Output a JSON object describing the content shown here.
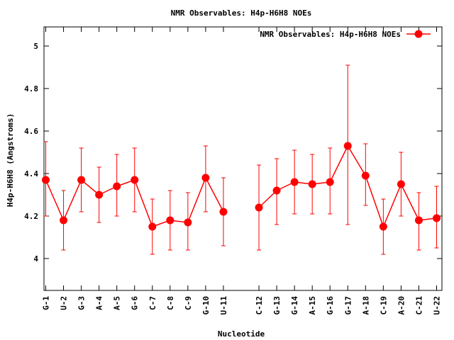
{
  "chart_data": {
    "type": "line",
    "title": "NMR Observables: H4p-H6H8 NOEs",
    "xlabel": "Nucleotide",
    "ylabel": "H4p-H6H8 (Angstroms)",
    "ylim": [
      3.85,
      5.09
    ],
    "yticks": [
      "4",
      "4.2",
      "4.4",
      "4.6",
      "4.8",
      "5"
    ],
    "ytick_values": [
      4.0,
      4.2,
      4.4,
      4.6,
      4.8,
      5.0
    ],
    "grid": false,
    "legend_position": "top-right",
    "line_color": "#ff0000",
    "series": [
      {
        "name": "NMR Observables: H4p-H6H8 NOEs",
        "points": [
          {
            "label": "G-1",
            "x": 1,
            "y": 4.37,
            "lo": 4.2,
            "hi": 4.55
          },
          {
            "label": "U-2",
            "x": 2,
            "y": 4.18,
            "lo": 4.04,
            "hi": 4.32
          },
          {
            "label": "G-3",
            "x": 3,
            "y": 4.37,
            "lo": 4.22,
            "hi": 4.52
          },
          {
            "label": "A-4",
            "x": 4,
            "y": 4.3,
            "lo": 4.17,
            "hi": 4.43
          },
          {
            "label": "A-5",
            "x": 5,
            "y": 4.34,
            "lo": 4.2,
            "hi": 4.49
          },
          {
            "label": "G-6",
            "x": 6,
            "y": 4.37,
            "lo": 4.22,
            "hi": 4.52
          },
          {
            "label": "C-7",
            "x": 7,
            "y": 4.15,
            "lo": 4.02,
            "hi": 4.28
          },
          {
            "label": "C-8",
            "x": 8,
            "y": 4.18,
            "lo": 4.04,
            "hi": 4.32
          },
          {
            "label": "C-9",
            "x": 9,
            "y": 4.17,
            "lo": 4.04,
            "hi": 4.31
          },
          {
            "label": "G-10",
            "x": 10,
            "y": 4.38,
            "lo": 4.22,
            "hi": 4.53
          },
          {
            "label": "U-11",
            "x": 11,
            "y": 4.22,
            "lo": 4.06,
            "hi": 4.38
          },
          {
            "label": "C-12",
            "x": 13,
            "y": 4.24,
            "lo": 4.04,
            "hi": 4.44
          },
          {
            "label": "G-13",
            "x": 14,
            "y": 4.32,
            "lo": 4.16,
            "hi": 4.47
          },
          {
            "label": "G-14",
            "x": 15,
            "y": 4.36,
            "lo": 4.21,
            "hi": 4.51
          },
          {
            "label": "A-15",
            "x": 16,
            "y": 4.35,
            "lo": 4.21,
            "hi": 4.49
          },
          {
            "label": "G-16",
            "x": 17,
            "y": 4.36,
            "lo": 4.21,
            "hi": 4.52
          },
          {
            "label": "G-17",
            "x": 18,
            "y": 4.53,
            "lo": 4.16,
            "hi": 4.91
          },
          {
            "label": "A-18",
            "x": 19,
            "y": 4.39,
            "lo": 4.25,
            "hi": 4.54
          },
          {
            "label": "C-19",
            "x": 20,
            "y": 4.15,
            "lo": 4.02,
            "hi": 4.28
          },
          {
            "label": "A-20",
            "x": 21,
            "y": 4.35,
            "lo": 4.2,
            "hi": 4.5
          },
          {
            "label": "C-21",
            "x": 22,
            "y": 4.18,
            "lo": 4.04,
            "hi": 4.31
          },
          {
            "label": "U-22",
            "x": 23,
            "y": 4.19,
            "lo": 4.05,
            "hi": 4.34
          }
        ]
      }
    ]
  }
}
